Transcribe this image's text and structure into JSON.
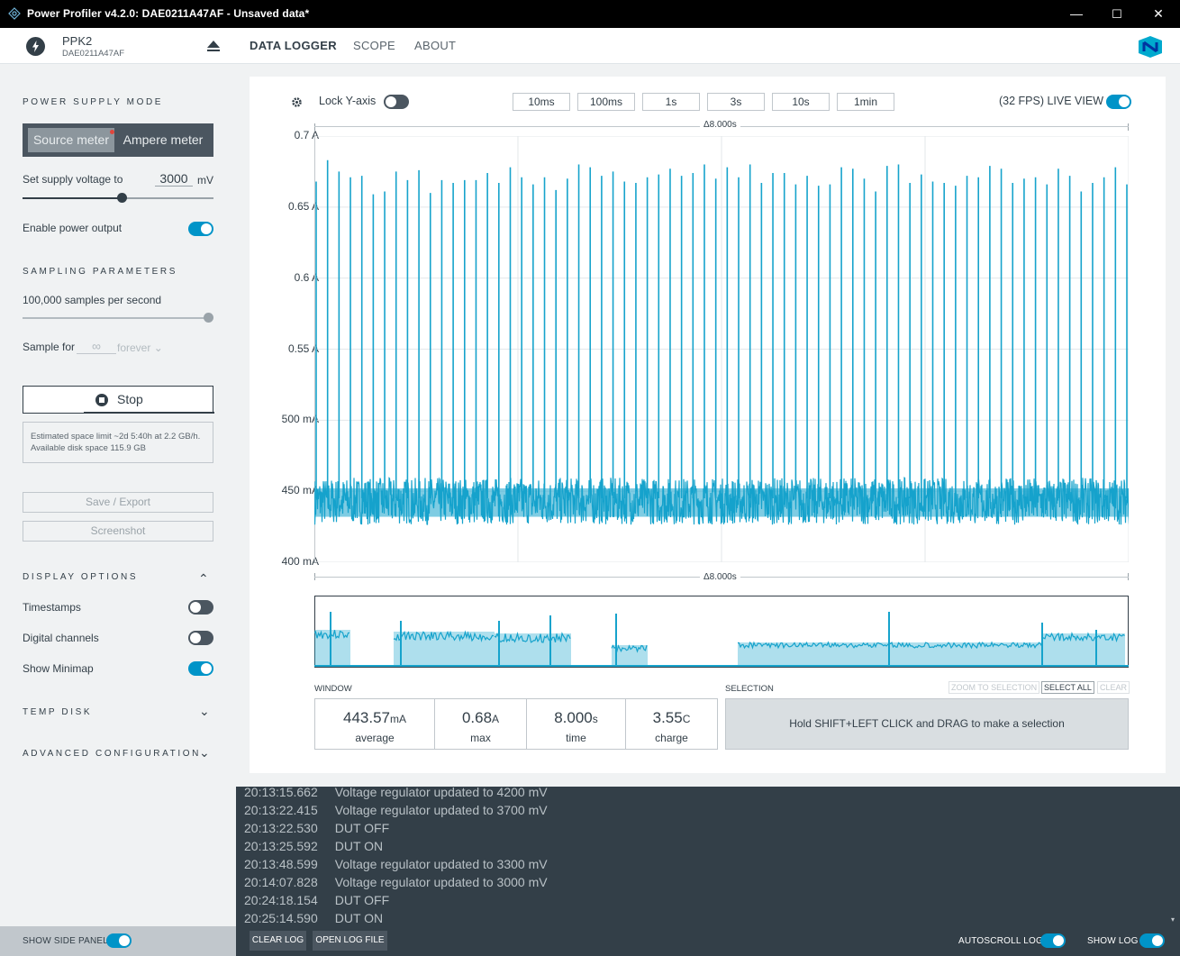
{
  "window": {
    "title": "Power Profiler v4.2.0: DAE0211A47AF - Unsaved data*",
    "minimize": "—",
    "maximize": "☐",
    "close": "✕"
  },
  "device": {
    "name": "PPK2",
    "serial": "DAE0211A47AF"
  },
  "nav": {
    "tabs": [
      "DATA LOGGER",
      "SCOPE",
      "ABOUT"
    ],
    "active": "DATA LOGGER"
  },
  "sidebar": {
    "power_supply_mode": {
      "title": "POWER SUPPLY MODE",
      "source_meter": "Source meter",
      "ampere_meter": "Ampere meter",
      "selected": "Source meter"
    },
    "supply_voltage": {
      "label": "Set supply voltage to",
      "value": "3000",
      "unit": "mV",
      "level_fraction": 0.5
    },
    "enable_power_output": {
      "label": "Enable power output",
      "on": true
    },
    "sampling": {
      "title": "SAMPLING PARAMETERS",
      "rate_label": "100,000 samples per second",
      "rate_fraction": 1.0,
      "sample_for_label": "Sample for",
      "sample_for_value": "∞",
      "sample_for_unit": "forever"
    },
    "stop_button": "Stop",
    "estimate_text": "Estimated space limit ~2d 5:40h at 2.2 GB/h. Available disk space 115.9 GB",
    "save_export": "Save / Export",
    "screenshot": "Screenshot",
    "display_options": {
      "title": "DISPLAY OPTIONS",
      "timestamps": "Timestamps",
      "timestamps_on": false,
      "digital_channels": "Digital channels",
      "digital_channels_on": false,
      "show_minimap": "Show Minimap",
      "show_minimap_on": true
    },
    "temp_disk": "TEMP DISK",
    "advanced_configuration": "ADVANCED CONFIGURATION"
  },
  "chart_toolbar": {
    "lock_y_axis": "Lock Y-axis",
    "lock_y_axis_on": false,
    "time_buttons": [
      "10ms",
      "100ms",
      "1s",
      "3s",
      "10s",
      "1min"
    ],
    "live_view": "(32 FPS) LIVE VIEW",
    "live_view_on": true
  },
  "chart_data": {
    "type": "line",
    "title": "",
    "delta_top": "Δ8.000s",
    "delta_bottom": "Δ8.000s",
    "xlabel": "",
    "ylabel": "",
    "xlim": [
      0,
      8.0
    ],
    "ylim": [
      0.4,
      0.7
    ],
    "y_ticks": [
      0.7,
      0.65,
      0.6,
      0.55,
      0.5,
      0.45,
      0.4
    ],
    "y_tick_labels": [
      "0.7 A",
      "0.65 A",
      "0.6 A",
      "0.55 A",
      "500 mA",
      "450 mA",
      "400 mA"
    ],
    "grid": true,
    "series": [
      {
        "color": "#16a3cc",
        "baseline_A": 0.443,
        "noise_band_A": [
          0.425,
          0.458
        ],
        "spike_peaks_A": [
          0.668,
          0.683,
          0.675,
          0.671,
          0.672,
          0.659,
          0.661,
          0.675,
          0.669,
          0.676,
          0.66,
          0.669,
          0.667,
          0.669,
          0.669,
          0.674,
          0.667,
          0.678,
          0.671,
          0.666,
          0.671,
          0.662,
          0.67,
          0.68,
          0.678,
          0.672,
          0.675,
          0.668,
          0.667,
          0.671,
          0.673,
          0.677,
          0.672,
          0.674,
          0.68,
          0.67,
          0.678,
          0.671,
          0.68,
          0.667,
          0.674,
          0.674,
          0.666,
          0.672,
          0.665,
          0.666,
          0.678,
          0.677,
          0.67,
          0.661,
          0.679,
          0.68,
          0.667,
          0.673,
          0.668,
          0.667,
          0.665,
          0.672,
          0.671,
          0.679,
          0.677,
          0.667,
          0.67,
          0.671,
          0.666,
          0.677,
          0.672,
          0.661,
          0.667,
          0.671,
          0.678,
          0.666
        ]
      }
    ]
  },
  "minimap": {
    "color": "#16a3cc"
  },
  "window_stats": {
    "title": "WINDOW",
    "average": {
      "value": "443.57",
      "unit": "mA",
      "caption": "average"
    },
    "max": {
      "value": "0.68",
      "unit": "A",
      "caption": "max"
    },
    "time": {
      "value": "8.000",
      "unit": "s",
      "caption": "time"
    },
    "charge": {
      "value": "3.55",
      "unit": "C",
      "caption": "charge"
    }
  },
  "selection": {
    "title": "SELECTION",
    "zoom_to_selection": "ZOOM TO SELECTION",
    "select_all": "SELECT ALL",
    "clear": "CLEAR",
    "hint": "Hold SHIFT+LEFT CLICK and DRAG to make a selection"
  },
  "log": [
    {
      "time": "20:13:15.662",
      "msg": "Voltage regulator updated to 4200 mV"
    },
    {
      "time": "20:13:22.415",
      "msg": "Voltage regulator updated to 3700 mV"
    },
    {
      "time": "20:13:22.530",
      "msg": "DUT OFF"
    },
    {
      "time": "20:13:25.592",
      "msg": "DUT ON"
    },
    {
      "time": "20:13:48.599",
      "msg": "Voltage regulator updated to 3300 mV"
    },
    {
      "time": "20:14:07.828",
      "msg": "Voltage regulator updated to 3000 mV"
    },
    {
      "time": "20:24:18.154",
      "msg": "DUT OFF"
    },
    {
      "time": "20:25:14.590",
      "msg": "DUT ON"
    }
  ],
  "bottom_bar": {
    "show_side_panel": "SHOW SIDE PANEL",
    "show_side_panel_on": true,
    "clear_log": "CLEAR LOG",
    "open_log_file": "OPEN LOG FILE",
    "autoscroll_log": "AUTOSCROLL LOG",
    "autoscroll_on": true,
    "show_log": "SHOW LOG",
    "show_log_on": true
  }
}
